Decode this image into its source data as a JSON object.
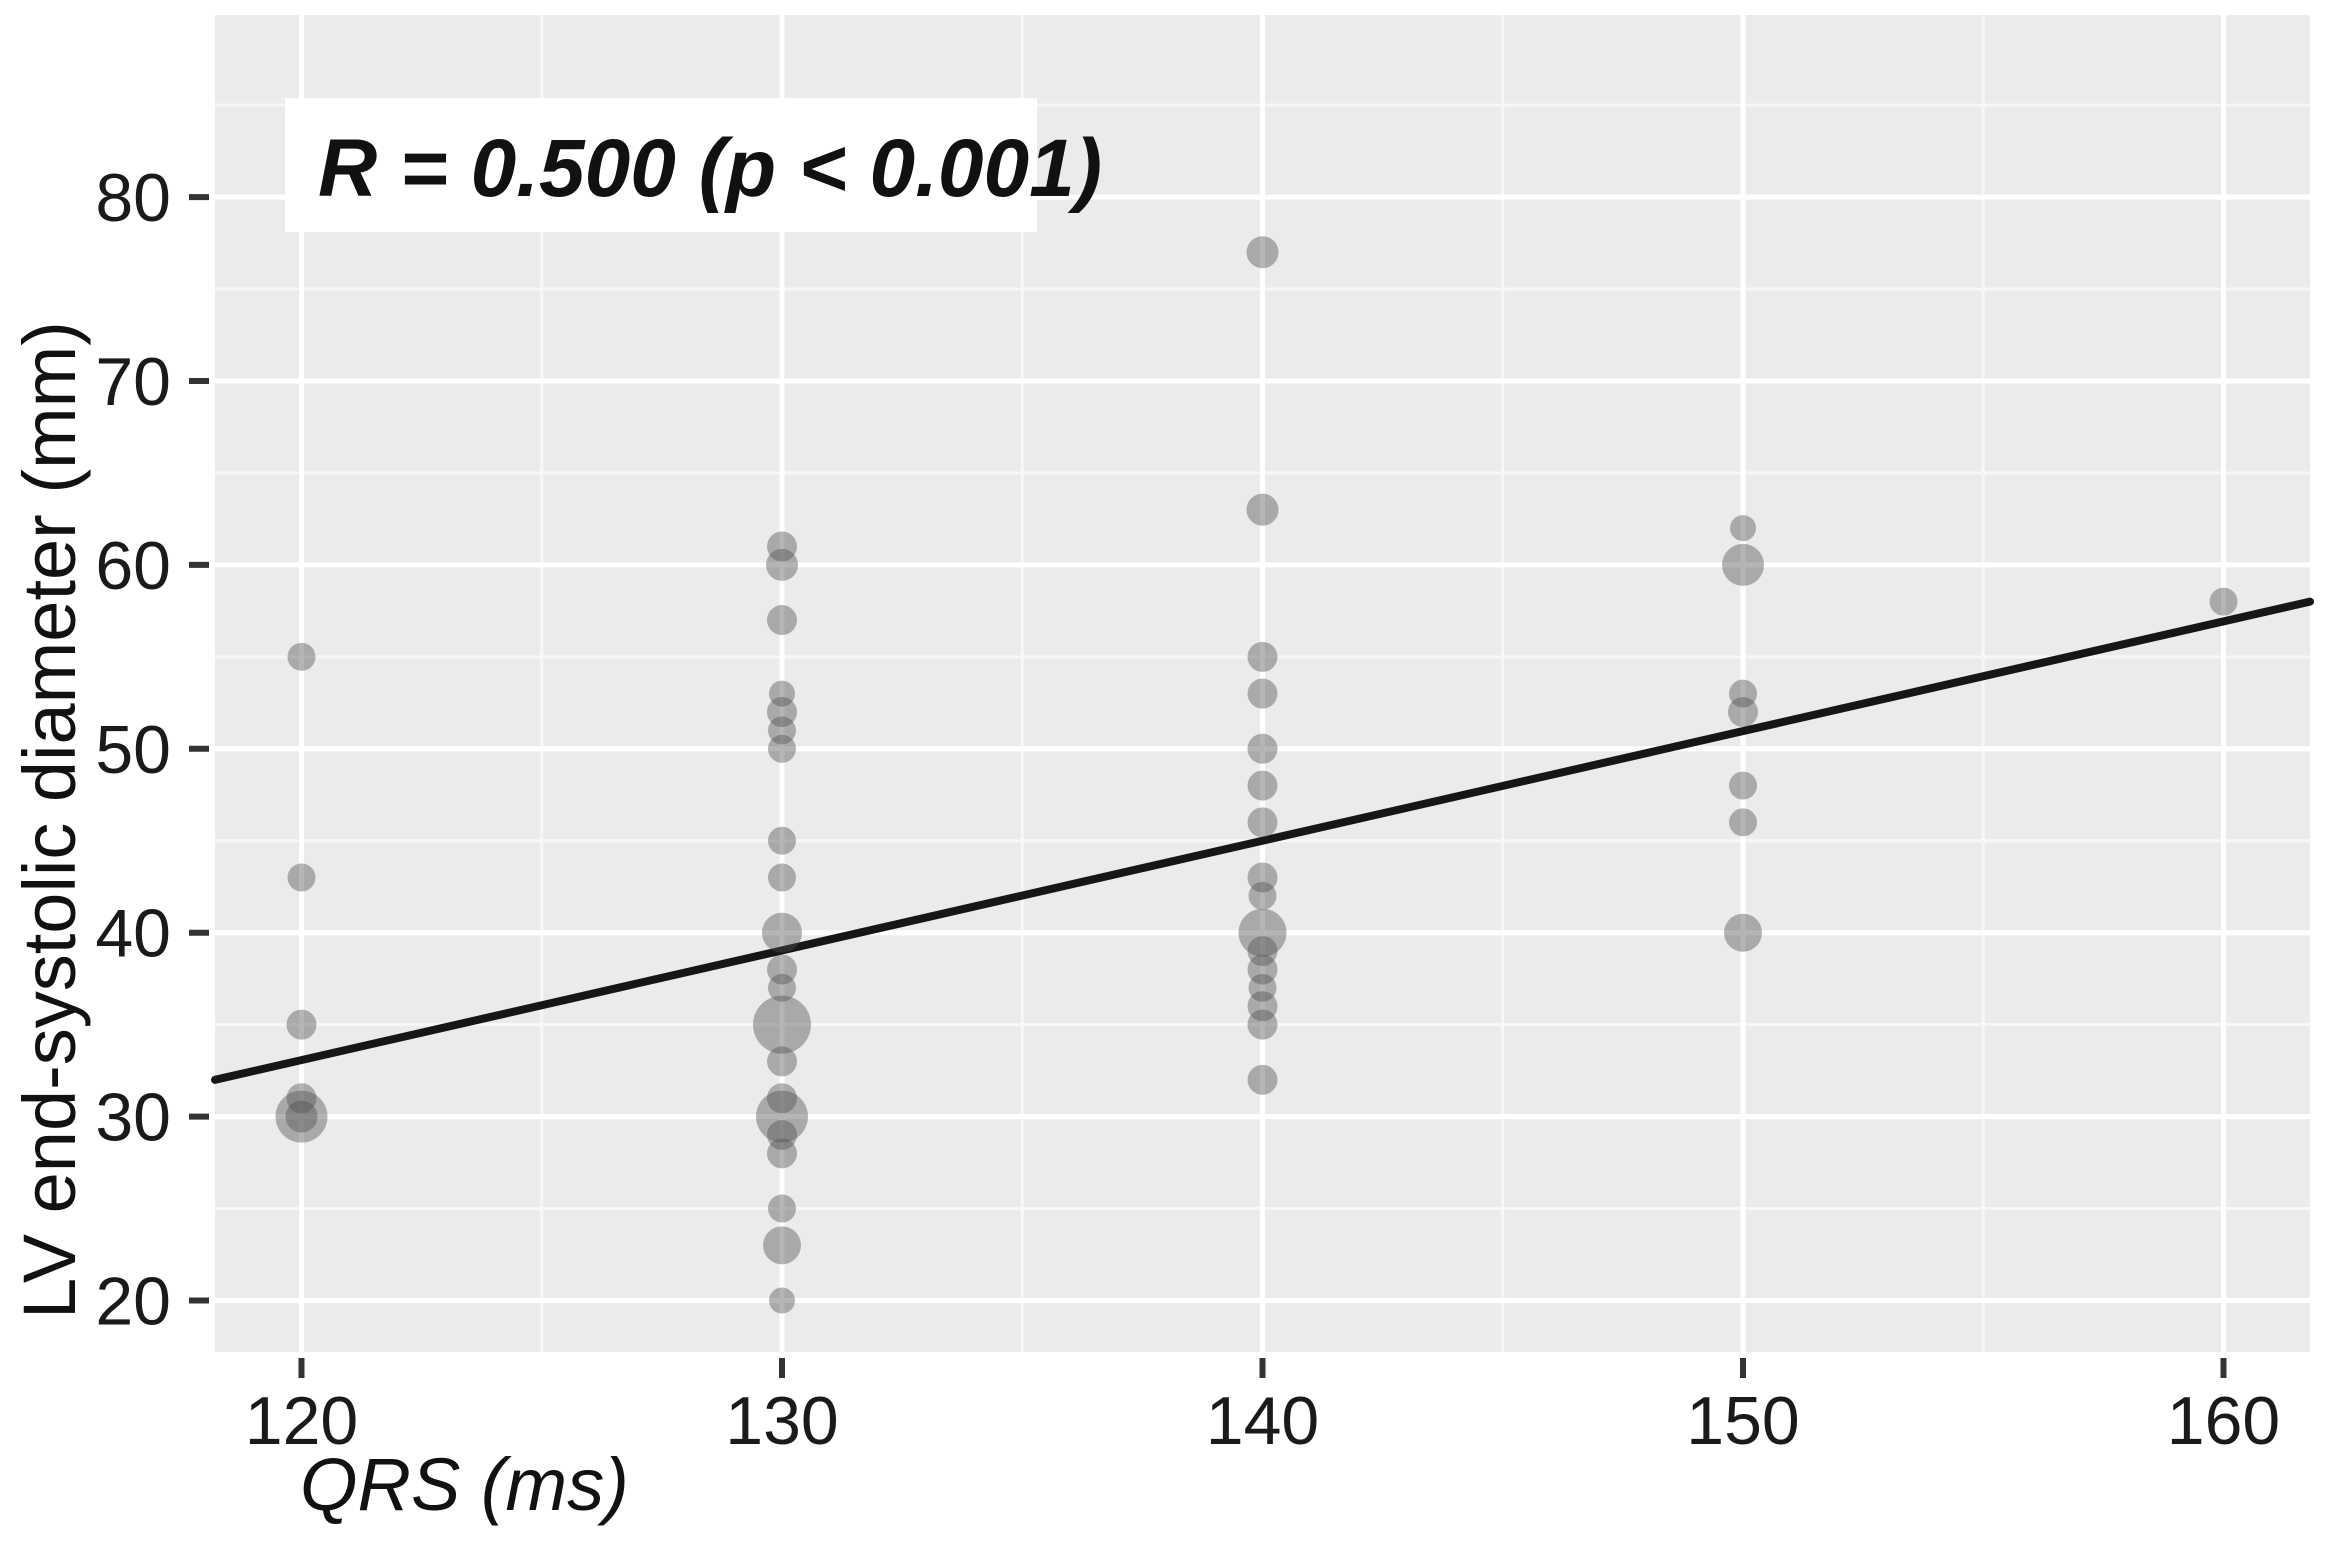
{
  "chart_data": {
    "type": "scatter",
    "annotation": "R = 0.500 (p < 0.001)",
    "xlabel": "QRS (ms)",
    "ylabel": "LV end-systolic diameter (mm)",
    "x_ticks": [
      120,
      130,
      140,
      150,
      160
    ],
    "y_ticks": [
      20,
      30,
      40,
      50,
      60,
      70,
      80
    ],
    "x_minor": [
      125,
      135,
      145,
      155
    ],
    "y_minor": [
      25,
      35,
      45,
      55,
      65,
      75,
      85
    ],
    "xlim": [
      118.2,
      161.8
    ],
    "ylim": [
      17.2,
      89.9
    ],
    "grid": "on",
    "legend": "none",
    "colors": {
      "panel": "#ebebeb",
      "grid_major": "#ffffff",
      "grid_minor": "#f7f7f7",
      "point": "#4f4f4f",
      "trend_line": "#161616",
      "annotation_bg": "#ffffff",
      "text": "#1a1a1a"
    },
    "trend_line": {
      "x1": 118.2,
      "y1": 32.0,
      "x2": 161.8,
      "y2": 58.0
    },
    "points": [
      {
        "x": 120,
        "y": 55,
        "r": 14
      },
      {
        "x": 120,
        "y": 43,
        "r": 14
      },
      {
        "x": 120,
        "y": 35,
        "r": 15
      },
      {
        "x": 120,
        "y": 31,
        "r": 15
      },
      {
        "x": 120,
        "y": 30,
        "r": 26
      },
      {
        "x": 120,
        "y": 30,
        "r": 16
      },
      {
        "x": 130,
        "y": 61,
        "r": 15
      },
      {
        "x": 130,
        "y": 60,
        "r": 16
      },
      {
        "x": 130,
        "y": 57,
        "r": 15
      },
      {
        "x": 130,
        "y": 53,
        "r": 13
      },
      {
        "x": 130,
        "y": 52,
        "r": 15
      },
      {
        "x": 130,
        "y": 51,
        "r": 14
      },
      {
        "x": 130,
        "y": 50,
        "r": 14
      },
      {
        "x": 130,
        "y": 45,
        "r": 14
      },
      {
        "x": 130,
        "y": 43,
        "r": 14
      },
      {
        "x": 130,
        "y": 40,
        "r": 20
      },
      {
        "x": 130,
        "y": 38,
        "r": 15
      },
      {
        "x": 130,
        "y": 37,
        "r": 14
      },
      {
        "x": 130,
        "y": 35,
        "r": 29
      },
      {
        "x": 130,
        "y": 33,
        "r": 15
      },
      {
        "x": 130,
        "y": 31,
        "r": 15
      },
      {
        "x": 130,
        "y": 30,
        "r": 26
      },
      {
        "x": 130,
        "y": 29,
        "r": 15
      },
      {
        "x": 130,
        "y": 28,
        "r": 15
      },
      {
        "x": 130,
        "y": 25,
        "r": 14
      },
      {
        "x": 130,
        "y": 23,
        "r": 19
      },
      {
        "x": 130,
        "y": 20,
        "r": 13
      },
      {
        "x": 140,
        "y": 77,
        "r": 16
      },
      {
        "x": 140,
        "y": 63,
        "r": 16
      },
      {
        "x": 140,
        "y": 55,
        "r": 15
      },
      {
        "x": 140,
        "y": 53,
        "r": 15
      },
      {
        "x": 140,
        "y": 50,
        "r": 15
      },
      {
        "x": 140,
        "y": 48,
        "r": 15
      },
      {
        "x": 140,
        "y": 46,
        "r": 15
      },
      {
        "x": 140,
        "y": 43,
        "r": 15
      },
      {
        "x": 140,
        "y": 42,
        "r": 14
      },
      {
        "x": 140,
        "y": 40,
        "r": 24
      },
      {
        "x": 140,
        "y": 39,
        "r": 15
      },
      {
        "x": 140,
        "y": 38,
        "r": 15
      },
      {
        "x": 140,
        "y": 37,
        "r": 14
      },
      {
        "x": 140,
        "y": 36,
        "r": 15
      },
      {
        "x": 140,
        "y": 35,
        "r": 15
      },
      {
        "x": 140,
        "y": 32,
        "r": 15
      },
      {
        "x": 150,
        "y": 62,
        "r": 13
      },
      {
        "x": 150,
        "y": 60,
        "r": 21
      },
      {
        "x": 150,
        "y": 53,
        "r": 14
      },
      {
        "x": 150,
        "y": 52,
        "r": 15
      },
      {
        "x": 150,
        "y": 48,
        "r": 14
      },
      {
        "x": 150,
        "y": 46,
        "r": 14
      },
      {
        "x": 150,
        "y": 40,
        "r": 19
      },
      {
        "x": 160,
        "y": 58,
        "r": 14
      }
    ]
  }
}
